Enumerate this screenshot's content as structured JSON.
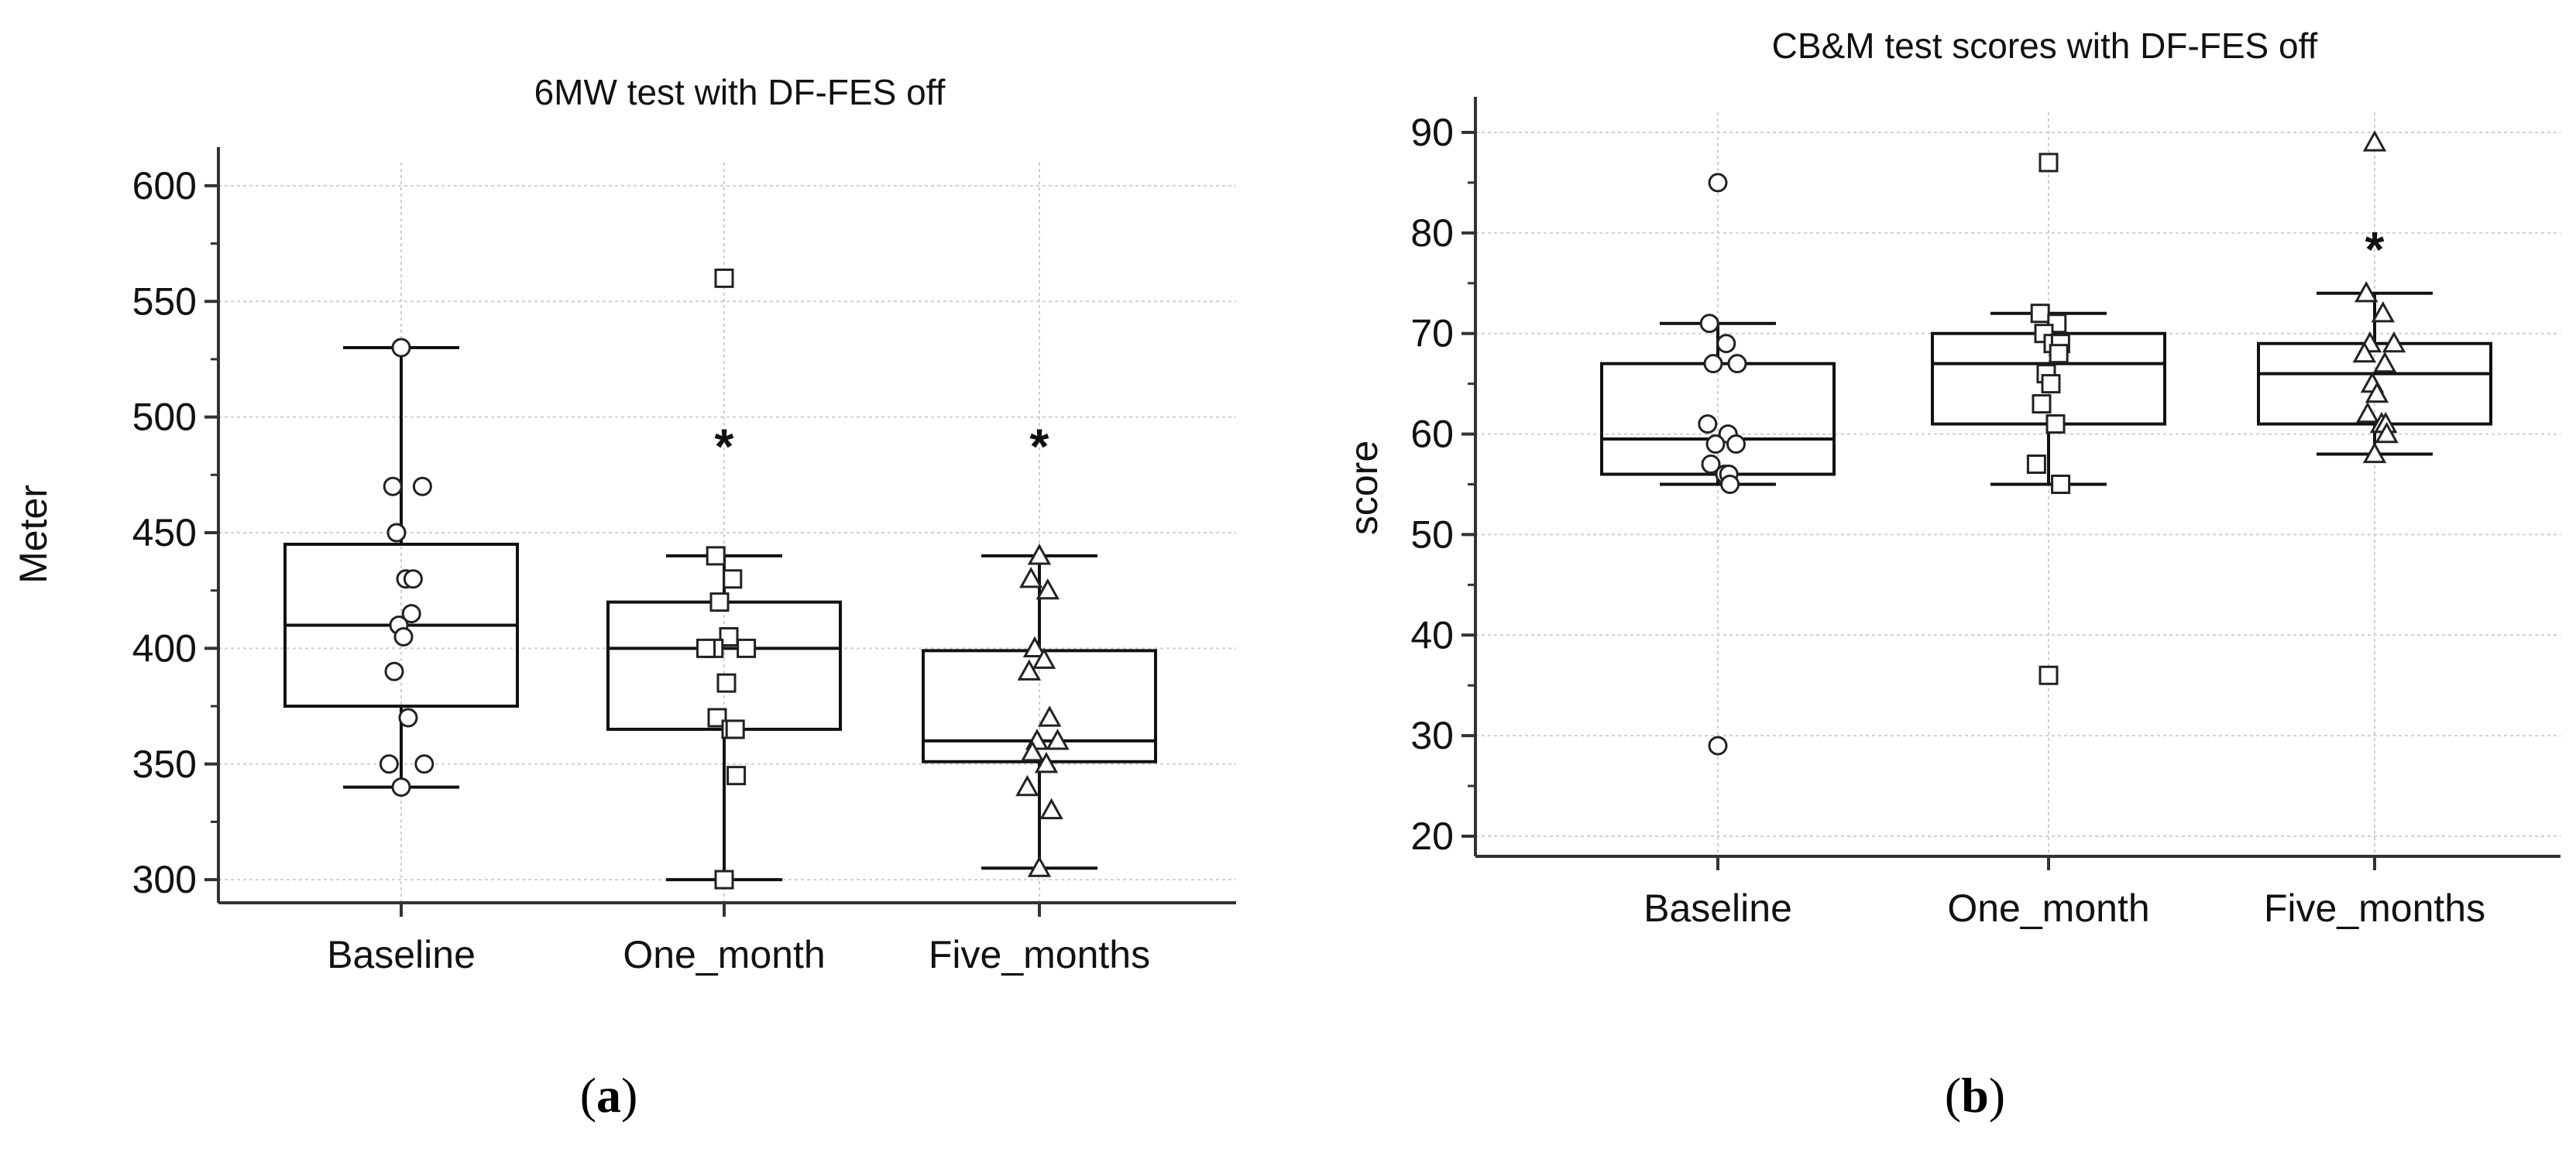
{
  "panels": [
    {
      "label": "a",
      "chart_data": {
        "type": "box",
        "title": "6MW test with DF-FES off",
        "xlabel": "",
        "ylabel": "Meter",
        "ylim": [
          290,
          610
        ],
        "yticks": [
          300,
          350,
          400,
          450,
          500,
          550,
          600
        ],
        "grid": true,
        "categories": [
          "Baseline",
          "One_month",
          "Five_months"
        ],
        "markers": [
          "circle",
          "square",
          "triangle"
        ],
        "boxes": [
          {
            "whisker_low": 340,
            "q1": 375,
            "median": 410,
            "q3": 445,
            "whisker_high": 530
          },
          {
            "whisker_low": 300,
            "q1": 365,
            "median": 400,
            "q3": 420,
            "whisker_high": 440
          },
          {
            "whisker_low": 305,
            "q1": 351,
            "median": 360,
            "q3": 399,
            "whisker_high": 440
          }
        ],
        "points": [
          [
            530,
            470,
            470,
            450,
            430,
            430,
            415,
            410,
            405,
            390,
            370,
            350,
            350,
            340
          ],
          [
            560,
            440,
            430,
            420,
            405,
            400,
            400,
            400,
            385,
            370,
            365,
            365,
            345,
            300
          ],
          [
            440,
            430,
            425,
            400,
            395,
            390,
            370,
            360,
            360,
            355,
            350,
            340,
            330,
            305
          ]
        ],
        "significance": [
          "",
          "*",
          "*"
        ],
        "significance_y": [
          null,
          490,
          490
        ]
      }
    },
    {
      "label": "b",
      "chart_data": {
        "type": "box",
        "title": "CB&M test scores with DF-FES off",
        "xlabel": "",
        "ylabel": "score",
        "ylim": [
          18,
          92
        ],
        "yticks": [
          20,
          30,
          40,
          50,
          60,
          70,
          80,
          90
        ],
        "grid": true,
        "categories": [
          "Baseline",
          "One_month",
          "Five_months"
        ],
        "markers": [
          "circle",
          "square",
          "triangle"
        ],
        "boxes": [
          {
            "whisker_low": 55,
            "q1": 56,
            "median": 59.5,
            "q3": 67,
            "whisker_high": 71
          },
          {
            "whisker_low": 55,
            "q1": 61,
            "median": 67,
            "q3": 70,
            "whisker_high": 72
          },
          {
            "whisker_low": 58,
            "q1": 61,
            "median": 66,
            "q3": 69,
            "whisker_high": 74
          }
        ],
        "points": [
          [
            85,
            71,
            69,
            67,
            67,
            61,
            60,
            59,
            59,
            57,
            56,
            56,
            55,
            29
          ],
          [
            87,
            72,
            71,
            70,
            69,
            69,
            68,
            66,
            65,
            63,
            61,
            57,
            55,
            36
          ],
          [
            89,
            74,
            72,
            69,
            69,
            68,
            67,
            65,
            64,
            62,
            61,
            61,
            60,
            58
          ]
        ],
        "significance": [
          "",
          "",
          "*"
        ],
        "significance_y": [
          null,
          null,
          79
        ]
      }
    }
  ]
}
